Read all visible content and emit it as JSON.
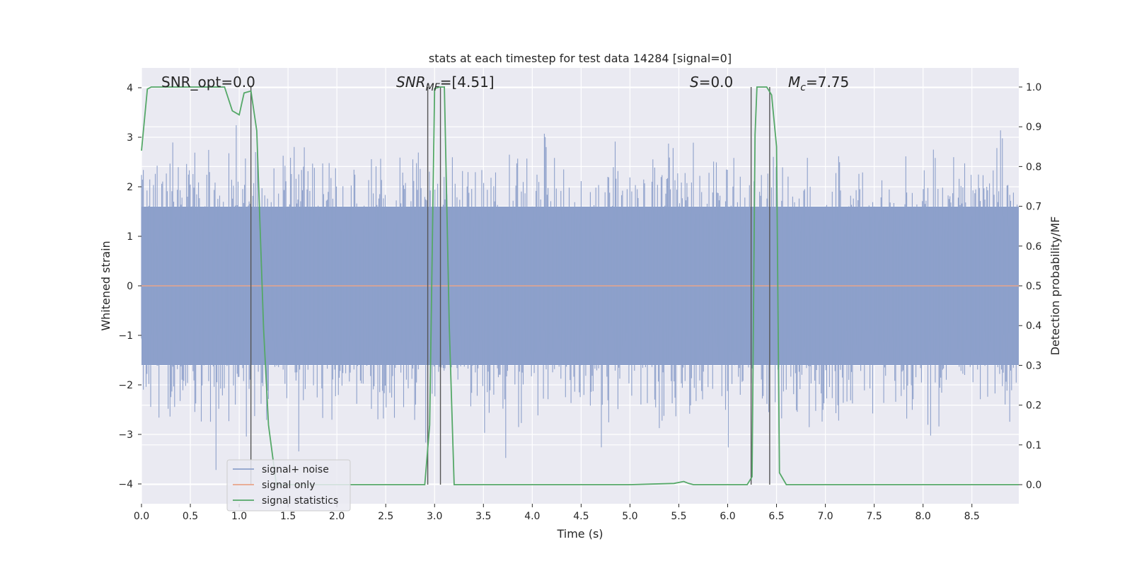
{
  "chart_data": {
    "type": "line",
    "title": "stats at each timestep for test data 14284 [signal=0]",
    "xlabel": "Time (s)",
    "ylabel_left": "Whitened strain",
    "ylabel_right": "Detection probability/MF",
    "xlim": [
      0,
      8.98
    ],
    "ylim_left": [
      -4.4,
      4.4
    ],
    "ylim_right": [
      -0.048,
      1.048
    ],
    "xticks": [
      "0.0",
      "0.5",
      "1.0",
      "1.5",
      "2.0",
      "2.5",
      "3.0",
      "3.5",
      "4.0",
      "4.5",
      "5.0",
      "5.5",
      "6.0",
      "6.5",
      "7.0",
      "7.5",
      "8.0",
      "8.5"
    ],
    "yticks_left": [
      "−4",
      "−3",
      "−2",
      "−1",
      "0",
      "1",
      "2",
      "3",
      "4"
    ],
    "yticks_right": [
      "0.0",
      "0.1",
      "0.2",
      "0.3",
      "0.4",
      "0.5",
      "0.6",
      "0.7",
      "0.8",
      "0.9",
      "1.0"
    ],
    "grid": true,
    "legend_position": "lower-left",
    "annotations": {
      "snr_opt": "SNR_opt=0.0",
      "snr_mf_prefix": "SNR",
      "snr_mf_sub": "MF",
      "snr_mf_value": "=[4.51]",
      "s_symbol": "S",
      "s_value": "=0.0",
      "mc_symbol": "M",
      "mc_sub": "c",
      "mc_value": "=7.75"
    },
    "series": [
      {
        "name": "signal+ noise",
        "color": "#8da0cb",
        "axis": "left",
        "kind": "noise",
        "amplitude_typical": 1.6,
        "amplitude_peak": 3.9
      },
      {
        "name": "signal only",
        "color": "#e8a48a",
        "axis": "left",
        "x": [
          0,
          8.98
        ],
        "y": [
          0,
          0
        ]
      },
      {
        "name": "signal statistics",
        "color": "#55a868",
        "axis": "right",
        "x": [
          0,
          0.06,
          0.1,
          0.5,
          0.85,
          0.93,
          1.0,
          1.05,
          1.12,
          1.18,
          1.25,
          1.3,
          1.38,
          1.45,
          2.0,
          2.9,
          2.95,
          3.0,
          3.05,
          3.1,
          3.15,
          3.2,
          3.5,
          4.0,
          5.0,
          5.45,
          5.55,
          5.6,
          5.65,
          5.8,
          6.2,
          6.25,
          6.28,
          6.3,
          6.32,
          6.35,
          6.4,
          6.45,
          6.5,
          6.53,
          6.6,
          7.0,
          8.0,
          8.98
        ],
        "y": [
          0.84,
          0.995,
          1.0,
          1.0,
          1.0,
          0.94,
          0.93,
          0.985,
          0.99,
          0.89,
          0.39,
          0.15,
          0.0,
          0.0,
          0.0,
          0.0,
          0.15,
          0.996,
          1.0,
          1.0,
          0.4,
          0.0,
          0.0,
          0.0,
          0.0,
          0.003,
          0.008,
          0.003,
          0.0,
          0.0,
          0.0,
          0.02,
          0.88,
          1.0,
          1.0,
          1.0,
          1.0,
          0.98,
          0.85,
          0.03,
          0.0,
          0.0,
          0.0,
          0.0
        ]
      }
    ],
    "vertical_markers_x": [
      1.12,
      2.93,
      3.06,
      6.24,
      6.43
    ]
  }
}
